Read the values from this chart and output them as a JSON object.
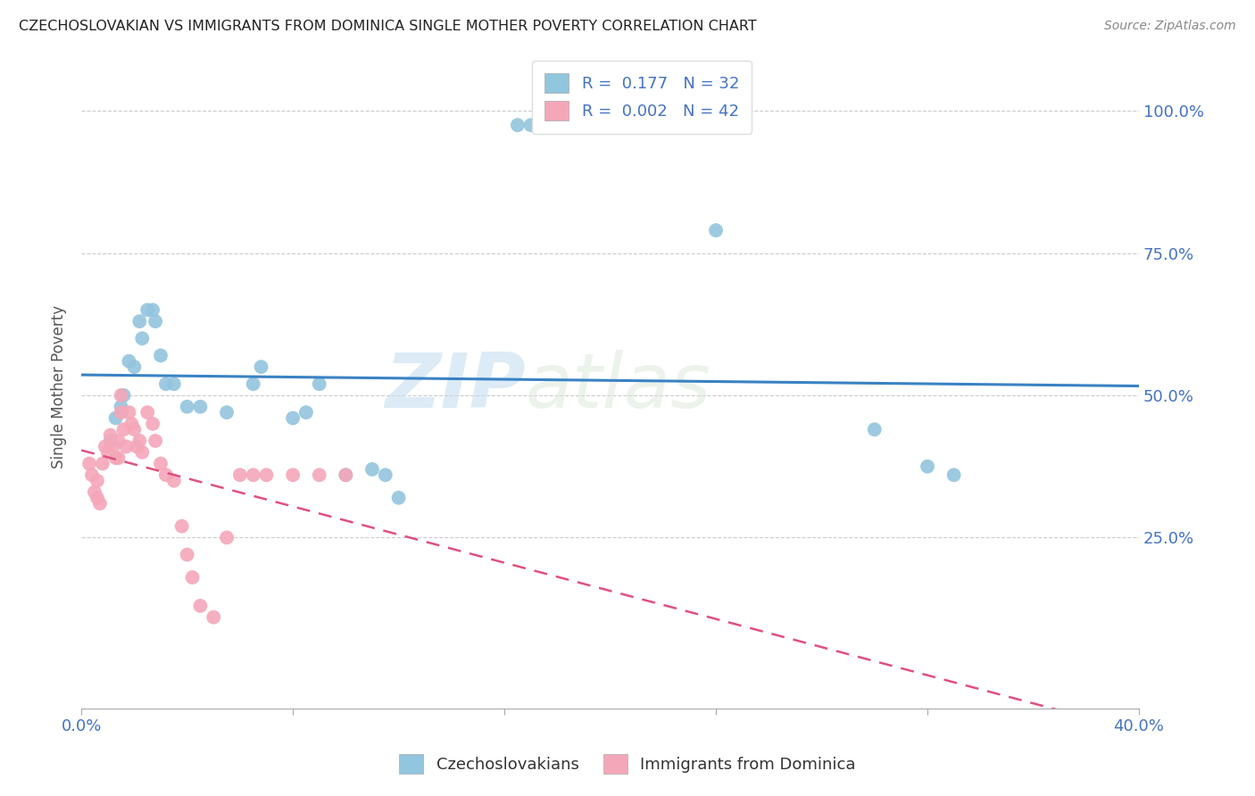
{
  "title": "CZECHOSLOVAKIAN VS IMMIGRANTS FROM DOMINICA SINGLE MOTHER POVERTY CORRELATION CHART",
  "source": "Source: ZipAtlas.com",
  "ylabel": "Single Mother Poverty",
  "ytick_labels": [
    "25.0%",
    "50.0%",
    "75.0%",
    "100.0%"
  ],
  "ytick_values": [
    25.0,
    50.0,
    75.0,
    100.0
  ],
  "xlim": [
    0.0,
    40.0
  ],
  "ylim": [
    -5.0,
    108.0
  ],
  "legend_label1": "Czechoslovakians",
  "legend_label2": "Immigrants from Dominica",
  "R1": "0.177",
  "N1": "32",
  "R2": "0.002",
  "N2": "42",
  "blue_color": "#92c5de",
  "pink_color": "#f4a7b9",
  "blue_line_color": "#3a82c4",
  "pink_line_color": "#e05080",
  "watermark_zip": "ZIP",
  "watermark_atlas": "atlas",
  "czech_x": [
    1.1,
    1.3,
    1.5,
    1.6,
    1.8,
    2.0,
    2.2,
    2.3,
    2.5,
    2.7,
    2.8,
    3.0,
    3.2,
    3.5,
    4.0,
    4.5,
    5.5,
    6.5,
    6.8,
    8.0,
    8.5,
    9.0,
    10.0,
    11.0,
    11.5,
    12.0,
    16.5,
    17.0,
    24.0,
    30.0,
    32.0,
    33.0
  ],
  "czech_y": [
    42.0,
    46.0,
    48.0,
    50.0,
    56.0,
    55.0,
    63.0,
    60.0,
    65.0,
    65.0,
    63.0,
    57.0,
    52.0,
    52.0,
    48.0,
    48.0,
    47.0,
    52.0,
    55.0,
    46.0,
    47.0,
    52.0,
    36.0,
    37.0,
    36.0,
    32.0,
    97.5,
    97.5,
    79.0,
    44.0,
    37.5,
    36.0
  ],
  "dominica_x": [
    0.3,
    0.4,
    0.5,
    0.6,
    0.6,
    0.7,
    0.8,
    0.9,
    1.0,
    1.1,
    1.2,
    1.3,
    1.4,
    1.4,
    1.5,
    1.5,
    1.6,
    1.7,
    1.8,
    1.9,
    2.0,
    2.1,
    2.2,
    2.3,
    2.5,
    2.7,
    2.8,
    3.0,
    3.2,
    3.5,
    3.8,
    4.0,
    4.2,
    4.5,
    5.0,
    5.5,
    6.0,
    6.5,
    7.0,
    8.0,
    9.0,
    10.0
  ],
  "dominica_y": [
    38.0,
    36.0,
    33.0,
    35.0,
    32.0,
    31.0,
    38.0,
    41.0,
    40.0,
    43.0,
    41.0,
    39.0,
    42.0,
    39.0,
    47.0,
    50.0,
    44.0,
    41.0,
    47.0,
    45.0,
    44.0,
    41.0,
    42.0,
    40.0,
    47.0,
    45.0,
    42.0,
    38.0,
    36.0,
    35.0,
    27.0,
    22.0,
    18.0,
    13.0,
    11.0,
    25.0,
    36.0,
    36.0,
    36.0,
    36.0,
    36.0,
    36.0
  ]
}
